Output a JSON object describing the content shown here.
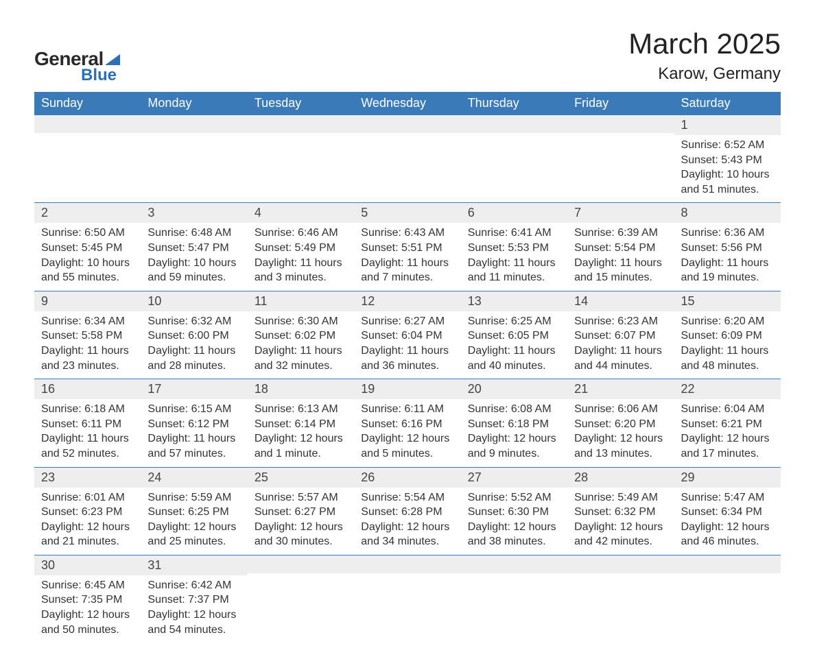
{
  "brand": {
    "word1": "General",
    "word2": "Blue",
    "accent_color": "#2d6fb5"
  },
  "title": {
    "month": "March 2025",
    "location": "Karow, Germany"
  },
  "colors": {
    "header_bg": "#3b7ab8",
    "header_fg": "#ffffff",
    "dayrow_bg": "#eeeeee",
    "border": "#3b7ab8",
    "text": "#333333",
    "page_bg": "#ffffff"
  },
  "typography": {
    "title_fontsize_pt": 32,
    "location_fontsize_pt": 18,
    "header_fontsize_pt": 14,
    "cell_fontsize_pt": 12
  },
  "weekdays": [
    "Sunday",
    "Monday",
    "Tuesday",
    "Wednesday",
    "Thursday",
    "Friday",
    "Saturday"
  ],
  "weeks": [
    [
      null,
      null,
      null,
      null,
      null,
      null,
      {
        "n": "1",
        "sunrise": "Sunrise: 6:52 AM",
        "sunset": "Sunset: 5:43 PM",
        "daylight": "Daylight: 10 hours and 51 minutes."
      }
    ],
    [
      {
        "n": "2",
        "sunrise": "Sunrise: 6:50 AM",
        "sunset": "Sunset: 5:45 PM",
        "daylight": "Daylight: 10 hours and 55 minutes."
      },
      {
        "n": "3",
        "sunrise": "Sunrise: 6:48 AM",
        "sunset": "Sunset: 5:47 PM",
        "daylight": "Daylight: 10 hours and 59 minutes."
      },
      {
        "n": "4",
        "sunrise": "Sunrise: 6:46 AM",
        "sunset": "Sunset: 5:49 PM",
        "daylight": "Daylight: 11 hours and 3 minutes."
      },
      {
        "n": "5",
        "sunrise": "Sunrise: 6:43 AM",
        "sunset": "Sunset: 5:51 PM",
        "daylight": "Daylight: 11 hours and 7 minutes."
      },
      {
        "n": "6",
        "sunrise": "Sunrise: 6:41 AM",
        "sunset": "Sunset: 5:53 PM",
        "daylight": "Daylight: 11 hours and 11 minutes."
      },
      {
        "n": "7",
        "sunrise": "Sunrise: 6:39 AM",
        "sunset": "Sunset: 5:54 PM",
        "daylight": "Daylight: 11 hours and 15 minutes."
      },
      {
        "n": "8",
        "sunrise": "Sunrise: 6:36 AM",
        "sunset": "Sunset: 5:56 PM",
        "daylight": "Daylight: 11 hours and 19 minutes."
      }
    ],
    [
      {
        "n": "9",
        "sunrise": "Sunrise: 6:34 AM",
        "sunset": "Sunset: 5:58 PM",
        "daylight": "Daylight: 11 hours and 23 minutes."
      },
      {
        "n": "10",
        "sunrise": "Sunrise: 6:32 AM",
        "sunset": "Sunset: 6:00 PM",
        "daylight": "Daylight: 11 hours and 28 minutes."
      },
      {
        "n": "11",
        "sunrise": "Sunrise: 6:30 AM",
        "sunset": "Sunset: 6:02 PM",
        "daylight": "Daylight: 11 hours and 32 minutes."
      },
      {
        "n": "12",
        "sunrise": "Sunrise: 6:27 AM",
        "sunset": "Sunset: 6:04 PM",
        "daylight": "Daylight: 11 hours and 36 minutes."
      },
      {
        "n": "13",
        "sunrise": "Sunrise: 6:25 AM",
        "sunset": "Sunset: 6:05 PM",
        "daylight": "Daylight: 11 hours and 40 minutes."
      },
      {
        "n": "14",
        "sunrise": "Sunrise: 6:23 AM",
        "sunset": "Sunset: 6:07 PM",
        "daylight": "Daylight: 11 hours and 44 minutes."
      },
      {
        "n": "15",
        "sunrise": "Sunrise: 6:20 AM",
        "sunset": "Sunset: 6:09 PM",
        "daylight": "Daylight: 11 hours and 48 minutes."
      }
    ],
    [
      {
        "n": "16",
        "sunrise": "Sunrise: 6:18 AM",
        "sunset": "Sunset: 6:11 PM",
        "daylight": "Daylight: 11 hours and 52 minutes."
      },
      {
        "n": "17",
        "sunrise": "Sunrise: 6:15 AM",
        "sunset": "Sunset: 6:12 PM",
        "daylight": "Daylight: 11 hours and 57 minutes."
      },
      {
        "n": "18",
        "sunrise": "Sunrise: 6:13 AM",
        "sunset": "Sunset: 6:14 PM",
        "daylight": "Daylight: 12 hours and 1 minute."
      },
      {
        "n": "19",
        "sunrise": "Sunrise: 6:11 AM",
        "sunset": "Sunset: 6:16 PM",
        "daylight": "Daylight: 12 hours and 5 minutes."
      },
      {
        "n": "20",
        "sunrise": "Sunrise: 6:08 AM",
        "sunset": "Sunset: 6:18 PM",
        "daylight": "Daylight: 12 hours and 9 minutes."
      },
      {
        "n": "21",
        "sunrise": "Sunrise: 6:06 AM",
        "sunset": "Sunset: 6:20 PM",
        "daylight": "Daylight: 12 hours and 13 minutes."
      },
      {
        "n": "22",
        "sunrise": "Sunrise: 6:04 AM",
        "sunset": "Sunset: 6:21 PM",
        "daylight": "Daylight: 12 hours and 17 minutes."
      }
    ],
    [
      {
        "n": "23",
        "sunrise": "Sunrise: 6:01 AM",
        "sunset": "Sunset: 6:23 PM",
        "daylight": "Daylight: 12 hours and 21 minutes."
      },
      {
        "n": "24",
        "sunrise": "Sunrise: 5:59 AM",
        "sunset": "Sunset: 6:25 PM",
        "daylight": "Daylight: 12 hours and 25 minutes."
      },
      {
        "n": "25",
        "sunrise": "Sunrise: 5:57 AM",
        "sunset": "Sunset: 6:27 PM",
        "daylight": "Daylight: 12 hours and 30 minutes."
      },
      {
        "n": "26",
        "sunrise": "Sunrise: 5:54 AM",
        "sunset": "Sunset: 6:28 PM",
        "daylight": "Daylight: 12 hours and 34 minutes."
      },
      {
        "n": "27",
        "sunrise": "Sunrise: 5:52 AM",
        "sunset": "Sunset: 6:30 PM",
        "daylight": "Daylight: 12 hours and 38 minutes."
      },
      {
        "n": "28",
        "sunrise": "Sunrise: 5:49 AM",
        "sunset": "Sunset: 6:32 PM",
        "daylight": "Daylight: 12 hours and 42 minutes."
      },
      {
        "n": "29",
        "sunrise": "Sunrise: 5:47 AM",
        "sunset": "Sunset: 6:34 PM",
        "daylight": "Daylight: 12 hours and 46 minutes."
      }
    ],
    [
      {
        "n": "30",
        "sunrise": "Sunrise: 6:45 AM",
        "sunset": "Sunset: 7:35 PM",
        "daylight": "Daylight: 12 hours and 50 minutes."
      },
      {
        "n": "31",
        "sunrise": "Sunrise: 6:42 AM",
        "sunset": "Sunset: 7:37 PM",
        "daylight": "Daylight: 12 hours and 54 minutes."
      },
      null,
      null,
      null,
      null,
      null
    ]
  ]
}
